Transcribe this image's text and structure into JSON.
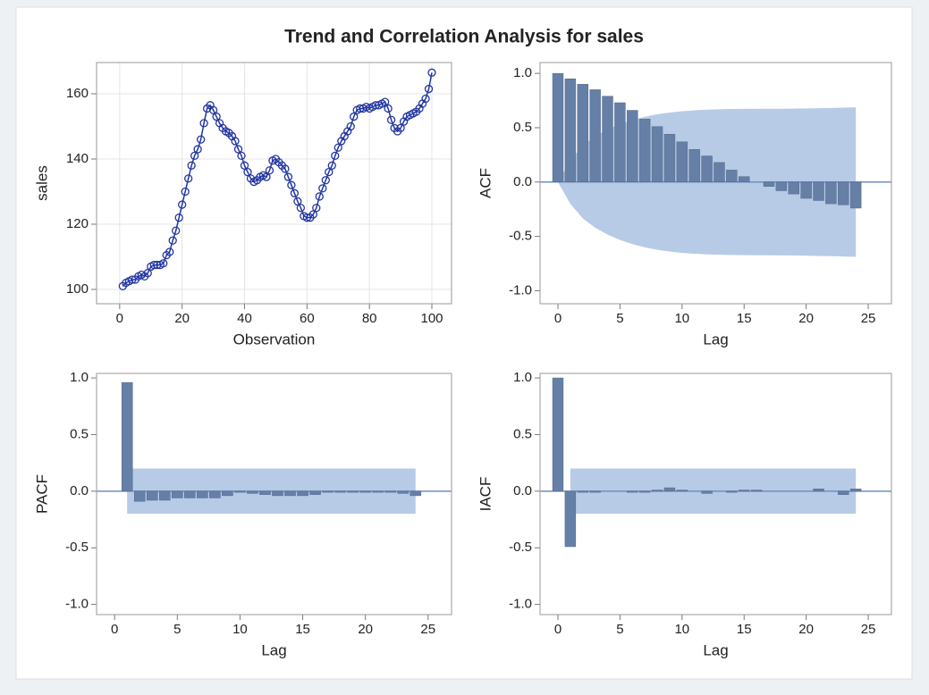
{
  "title": "Trend and Correlation Analysis for sales",
  "chart_data": [
    {
      "type": "line",
      "x_label": "Observation",
      "y_label": "sales",
      "color": "#2236a0",
      "grid": true,
      "x": [
        1,
        2,
        3,
        4,
        5,
        6,
        7,
        8,
        9,
        10,
        11,
        12,
        13,
        14,
        15,
        16,
        17,
        18,
        19,
        20,
        21,
        22,
        23,
        24,
        25,
        26,
        27,
        28,
        29,
        30,
        31,
        32,
        33,
        34,
        35,
        36,
        37,
        38,
        39,
        40,
        41,
        42,
        43,
        44,
        45,
        46,
        47,
        48,
        49,
        50,
        51,
        52,
        53,
        54,
        55,
        56,
        57,
        58,
        59,
        60,
        61,
        62,
        63,
        64,
        65,
        66,
        67,
        68,
        69,
        70,
        71,
        72,
        73,
        74,
        75,
        76,
        77,
        78,
        79,
        80,
        81,
        82,
        83,
        84,
        85,
        86,
        87,
        88,
        89,
        90,
        91,
        92,
        93,
        94,
        95,
        96,
        97,
        98,
        99,
        100
      ],
      "values": [
        101,
        102,
        102.5,
        103,
        103,
        104,
        104.5,
        104,
        105,
        107,
        107.5,
        107.5,
        107.5,
        108,
        110.5,
        111.5,
        115,
        118,
        122,
        126,
        130,
        134,
        138,
        141,
        143,
        146,
        151,
        155.5,
        156.5,
        155,
        153,
        151,
        149.5,
        148.5,
        148,
        147,
        145.5,
        143,
        141,
        138,
        136,
        134,
        133,
        133.5,
        134.5,
        135,
        134.5,
        136.5,
        139.5,
        140,
        139,
        138,
        137,
        134.5,
        132,
        129.5,
        127,
        125,
        122.5,
        122,
        122,
        123,
        125,
        128.5,
        131,
        133.5,
        136,
        138,
        141,
        143.5,
        145.5,
        147,
        148.5,
        150,
        153,
        155,
        155.5,
        155.5,
        156,
        155.5,
        156,
        156.5,
        156.5,
        157,
        157.5,
        155.5,
        152,
        149.5,
        148.5,
        149.5,
        151.5,
        153,
        153.5,
        154,
        154.5,
        155.5,
        157,
        158.5,
        161.5,
        166.5
      ],
      "xlim": [
        -7.4,
        106.3
      ],
      "xticks": [
        0,
        20,
        40,
        60,
        80,
        100
      ],
      "ylim": [
        95.6,
        169.6
      ],
      "yticks": [
        100,
        120,
        140,
        160
      ]
    },
    {
      "type": "bar",
      "x_label": "Lag",
      "y_label": "ACF",
      "color": "#667fa6",
      "band_color": "#b7cbe6",
      "reference_line": 0,
      "x": [
        0,
        1,
        2,
        3,
        4,
        5,
        6,
        7,
        8,
        9,
        10,
        11,
        12,
        13,
        14,
        15,
        16,
        17,
        18,
        19,
        20,
        21,
        22,
        23,
        24
      ],
      "values": [
        1.0,
        0.95,
        0.9,
        0.85,
        0.79,
        0.73,
        0.66,
        0.58,
        0.51,
        0.44,
        0.37,
        0.3,
        0.24,
        0.18,
        0.11,
        0.05,
        0.0,
        -0.04,
        -0.08,
        -0.11,
        -0.15,
        -0.17,
        -0.2,
        -0.21,
        -0.24
      ],
      "band_x": [
        0,
        1,
        2,
        3,
        4,
        5,
        6,
        7,
        8,
        9,
        10,
        11,
        12,
        13,
        14,
        15,
        16,
        17,
        18,
        19,
        20,
        21,
        22,
        23,
        24
      ],
      "band_upper": [
        0,
        0.2,
        0.335,
        0.42,
        0.484,
        0.533,
        0.571,
        0.601,
        0.624,
        0.64,
        0.652,
        0.66,
        0.666,
        0.669,
        0.672,
        0.673,
        0.674,
        0.674,
        0.675,
        0.676,
        0.678,
        0.68,
        0.682,
        0.685,
        0.688
      ],
      "band_lower": [
        0,
        -0.2,
        -0.335,
        -0.42,
        -0.484,
        -0.533,
        -0.571,
        -0.601,
        -0.624,
        -0.64,
        -0.652,
        -0.66,
        -0.666,
        -0.669,
        -0.672,
        -0.673,
        -0.674,
        -0.674,
        -0.675,
        -0.676,
        -0.678,
        -0.68,
        -0.682,
        -0.685,
        -0.688
      ],
      "xlim": [
        -1.44,
        26.87
      ],
      "xticks": [
        0,
        5,
        10,
        15,
        20,
        25
      ],
      "ylim": [
        -1.12,
        1.1
      ],
      "yticks": [
        {
          "value": -1,
          "label": "-1.0"
        },
        -0.5,
        {
          "value": 0,
          "label": "0.0"
        },
        0.5,
        {
          "value": 1,
          "label": "1.0"
        }
      ]
    },
    {
      "type": "bar",
      "x_label": "Lag",
      "y_label": "PACF",
      "color": "#667fa6",
      "band_color": "#b7cbe6",
      "reference_line": 0,
      "x": [
        1,
        2,
        3,
        4,
        5,
        6,
        7,
        8,
        9,
        10,
        11,
        12,
        13,
        14,
        15,
        16,
        17,
        18,
        19,
        20,
        21,
        22,
        23,
        24
      ],
      "values": [
        0.96,
        -0.09,
        -0.08,
        -0.08,
        -0.06,
        -0.06,
        -0.06,
        -0.06,
        -0.04,
        -0.01,
        -0.02,
        -0.03,
        -0.04,
        -0.04,
        -0.04,
        -0.03,
        -0.01,
        -0.01,
        -0.01,
        -0.01,
        -0.01,
        -0.01,
        -0.02,
        -0.04
      ],
      "band_x": [
        1,
        24
      ],
      "band_upper": [
        0.2,
        0.2
      ],
      "band_lower": [
        -0.2,
        -0.2
      ],
      "xlim": [
        -1.44,
        26.87
      ],
      "xticks": [
        0,
        5,
        10,
        15,
        20,
        25
      ],
      "ylim": [
        -1.09,
        1.04
      ],
      "yticks": [
        {
          "value": -1,
          "label": "-1.0"
        },
        -0.5,
        {
          "value": 0,
          "label": "0.0"
        },
        0.5,
        {
          "value": 1,
          "label": "1.0"
        }
      ]
    },
    {
      "type": "bar",
      "x_label": "Lag",
      "y_label": "IACF",
      "color": "#667fa6",
      "band_color": "#b7cbe6",
      "reference_line": 0,
      "x": [
        0,
        1,
        2,
        3,
        4,
        5,
        6,
        7,
        8,
        9,
        10,
        11,
        12,
        13,
        14,
        15,
        16,
        17,
        18,
        19,
        20,
        21,
        22,
        23,
        24
      ],
      "values": [
        1.0,
        -0.49,
        -0.01,
        -0.01,
        0.0,
        0.0,
        -0.01,
        -0.01,
        0.01,
        0.03,
        0.01,
        0.0,
        -0.02,
        0.0,
        -0.01,
        0.01,
        0.01,
        0.0,
        0.0,
        0.0,
        0.0,
        0.02,
        0.0,
        -0.03,
        0.02
      ],
      "band_x": [
        1,
        24
      ],
      "band_upper": [
        0.2,
        0.2
      ],
      "band_lower": [
        -0.2,
        -0.2
      ],
      "xlim": [
        -1.44,
        26.87
      ],
      "xticks": [
        0,
        5,
        10,
        15,
        20,
        25
      ],
      "ylim": [
        -1.09,
        1.04
      ],
      "yticks": [
        {
          "value": -1,
          "label": "-1.0"
        },
        -0.5,
        {
          "value": 0,
          "label": "0.0"
        },
        0.5,
        {
          "value": 1,
          "label": "1.0"
        }
      ]
    }
  ]
}
